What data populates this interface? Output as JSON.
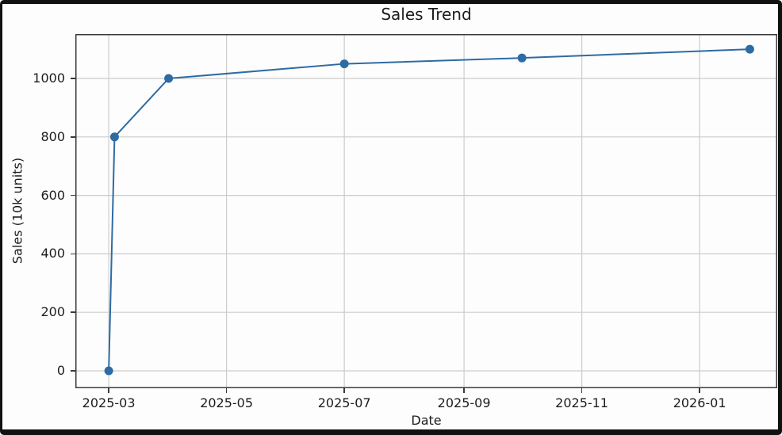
{
  "figure": {
    "background": "#fdfdfd",
    "frame_color": "#111111"
  },
  "chart_data": {
    "type": "line",
    "title": "Sales Trend",
    "xlabel": "Date",
    "ylabel": "Sales (10k units)",
    "legend": false,
    "grid": true,
    "line_color": "#2e6ba3",
    "marker_color": "#2e6ba3",
    "grid_color": "#cccccc",
    "axis_color": "#3b3b3b",
    "text_color": "#1c1c1c",
    "marker": "circle",
    "series": [
      {
        "name": "Sales",
        "x_dates": [
          "2025-03-01",
          "2025-03-04",
          "2025-04-01",
          "2025-07-01",
          "2025-10-01",
          "2026-01-27"
        ],
        "x_day_offsets": [
          0,
          3,
          31,
          122,
          214,
          332
        ],
        "values": [
          0,
          800,
          1000,
          1050,
          1070,
          1100
        ]
      }
    ],
    "x_ticks": [
      {
        "label": "2025-03",
        "day_offset": 0
      },
      {
        "label": "2025-05",
        "day_offset": 61
      },
      {
        "label": "2025-07",
        "day_offset": 122
      },
      {
        "label": "2025-09",
        "day_offset": 184
      },
      {
        "label": "2025-11",
        "day_offset": 245
      },
      {
        "label": "2026-01",
        "day_offset": 306
      }
    ],
    "y_ticks": [
      0,
      200,
      400,
      600,
      800,
      1000
    ],
    "xlim_day_offsets": [
      -17.3,
      346.2
    ],
    "ylim": [
      -59.6,
      1151.8
    ]
  }
}
